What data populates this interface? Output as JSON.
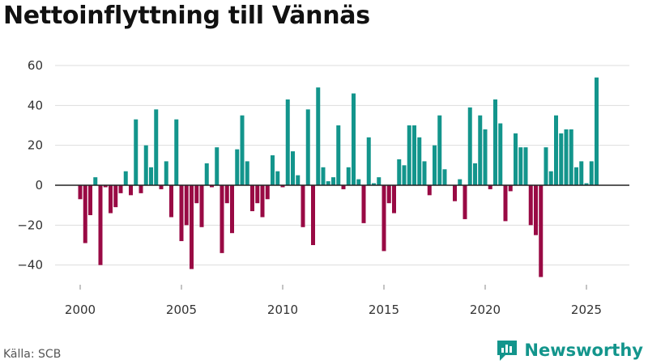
{
  "title": "Nettoinflyttning till Vännäs",
  "source": "Källa: SCB",
  "brand": {
    "name": "Newsworthy",
    "logo_icon": "bar-chart-badge-icon"
  },
  "colors": {
    "positive": "#13958c",
    "negative": "#990a44",
    "grid": "#dddddd",
    "zero": "#222222",
    "brand": "#13958c"
  },
  "chart_data": {
    "type": "bar",
    "title": "Nettoinflyttning till Vännäs",
    "xlabel": "",
    "ylabel": "",
    "ylim": [
      -48,
      62
    ],
    "xlim": [
      1999.2,
      2026.6
    ],
    "y_ticks": [
      60,
      40,
      20,
      0,
      -20,
      -40
    ],
    "y_tick_labels": [
      "60",
      "40",
      "20",
      "0",
      "−20",
      "−40"
    ],
    "x_ticks": [
      2000,
      2005,
      2010,
      2015,
      2020,
      2025
    ],
    "x_tick_labels": [
      "2000",
      "2005",
      "2010",
      "2015",
      "2020",
      "2025"
    ],
    "start_period": 2000.0,
    "period_step": 0.25,
    "note": "Quarterly values starting with Q1 2000",
    "values": [
      -7,
      -29,
      -15,
      4,
      -40,
      -1,
      -14,
      -11,
      -4,
      7,
      -5,
      33,
      -4,
      20,
      9,
      38,
      -2,
      12,
      -16,
      33,
      -28,
      -20,
      -42,
      -9,
      -21,
      11,
      -1,
      19,
      -34,
      -9,
      -24,
      18,
      35,
      12,
      -13,
      -9,
      -16,
      -7,
      15,
      7,
      -1,
      43,
      17,
      5,
      -21,
      38,
      -30,
      49,
      9,
      2,
      4,
      30,
      -2,
      9,
      46,
      3,
      -19,
      24,
      1,
      4,
      -33,
      -9,
      -14,
      13,
      10,
      30,
      30,
      24,
      12,
      -5,
      20,
      35,
      8,
      0,
      -8,
      3,
      -17,
      39,
      11,
      35,
      28,
      -2,
      43,
      31,
      -18,
      -3,
      26,
      19,
      19,
      -20,
      -25,
      -46,
      19,
      7,
      35,
      26,
      28,
      28,
      9,
      12,
      1,
      12,
      54
    ]
  }
}
